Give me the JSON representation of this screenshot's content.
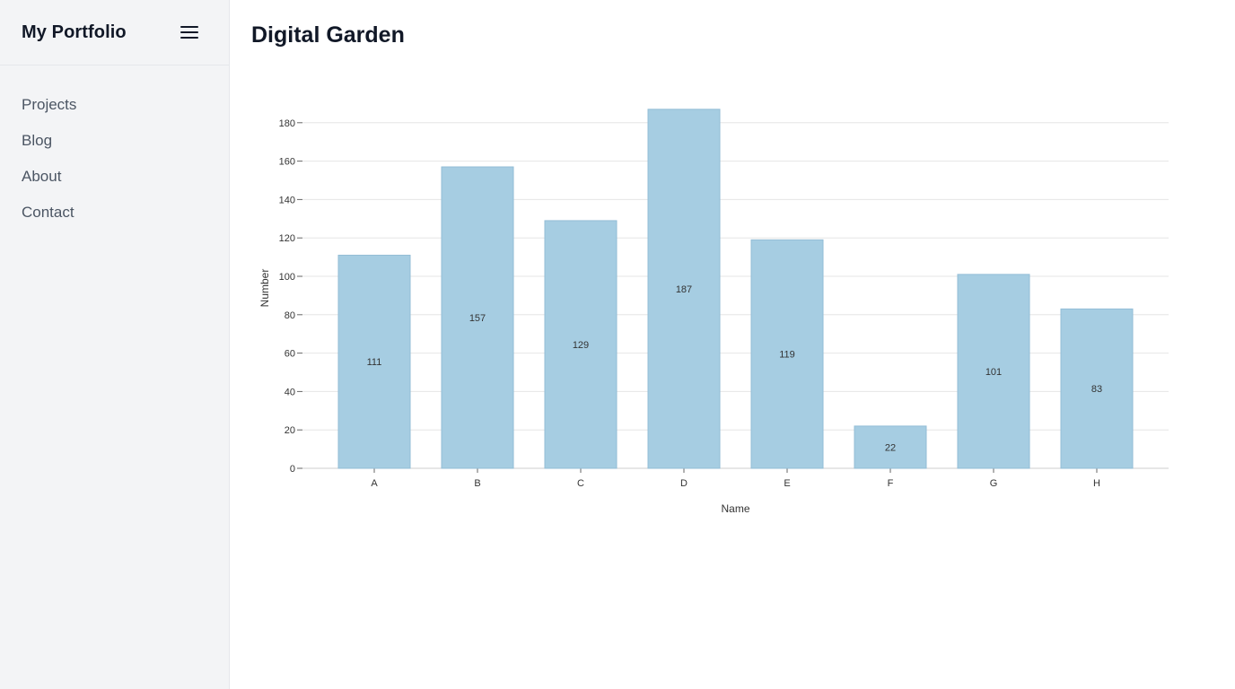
{
  "sidebar": {
    "brand": "My Portfolio",
    "menu_icon": "hamburger-menu-icon",
    "items": [
      {
        "label": "Projects"
      },
      {
        "label": "Blog"
      },
      {
        "label": "About"
      },
      {
        "label": "Contact"
      }
    ]
  },
  "main": {
    "title": "Digital Garden"
  },
  "colors": {
    "bar_fill": "#a6cde2",
    "bar_stroke": "#93bdd6",
    "grid": "#e6e6e6",
    "sidebar_bg": "#f3f4f6"
  },
  "chart_data": {
    "type": "bar",
    "categories": [
      "A",
      "B",
      "C",
      "D",
      "E",
      "F",
      "G",
      "H"
    ],
    "values": [
      111,
      157,
      129,
      187,
      119,
      22,
      101,
      83
    ],
    "xlabel": "Name",
    "ylabel": "Number",
    "ylim": [
      0,
      190
    ],
    "yticks": [
      0,
      20,
      40,
      60,
      80,
      100,
      120,
      140,
      160,
      180
    ],
    "grid": true,
    "data_labels": true
  }
}
